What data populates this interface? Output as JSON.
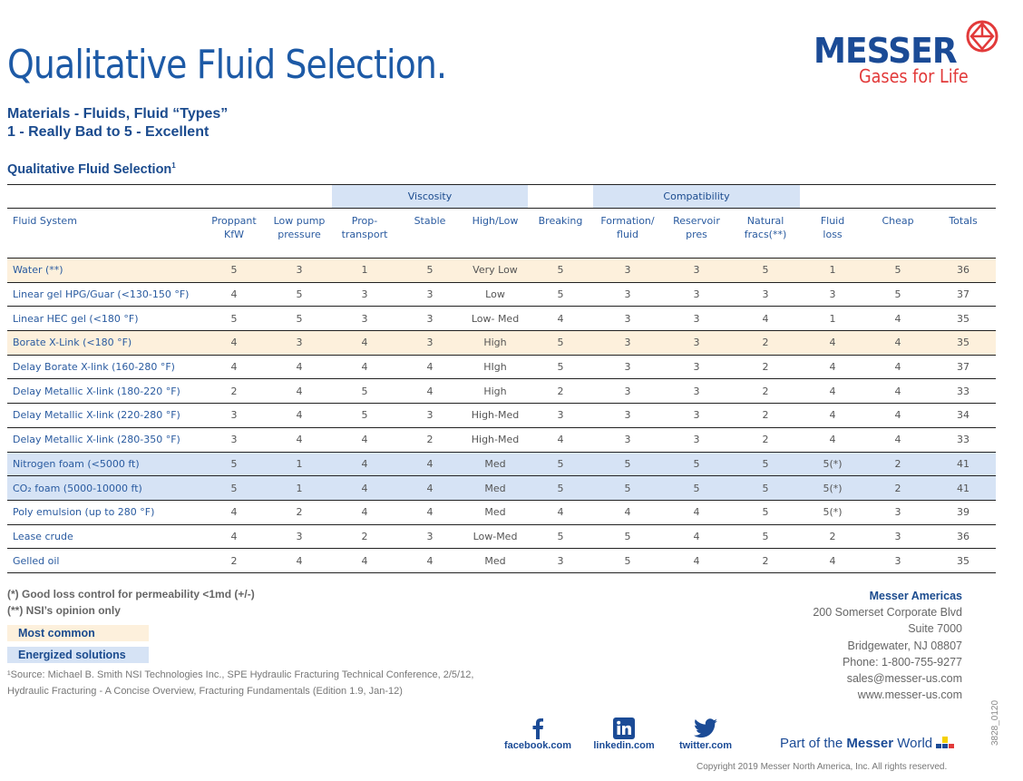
{
  "header": {
    "title": "Qualitative Fluid Selection.",
    "subtitle_line1": "Materials - Fluids, Fluid “Types”",
    "subtitle_line2": "1 - Really Bad to 5 - Excellent",
    "table_title": "Qualitative Fluid Selection",
    "table_title_sup": "1"
  },
  "logo": {
    "brand": "MESSER",
    "tagline": "Gases for Life",
    "brand_color": "#1b4b96",
    "tagline_color": "#e23a3a"
  },
  "colors": {
    "most_common": "#fdf0dc",
    "energized": "#d6e3f5",
    "accent": "#1d5aa6"
  },
  "table": {
    "groups": {
      "viscosity": "Viscosity",
      "compatibility": "Compatibility"
    },
    "columns": [
      "Fluid System",
      "Proppant KfW",
      "Low pump pressure",
      "Prop-transport",
      "Stable",
      "High/Low",
      "Breaking",
      "Formation/ fluid",
      "Reservoir pres",
      "Natural fracs(**)",
      "Fluid loss",
      "Cheap",
      "Totals"
    ],
    "rows": [
      {
        "type": "common",
        "cells": [
          "Water (**)",
          "5",
          "3",
          "1",
          "5",
          "Very Low",
          "5",
          "3",
          "3",
          "5",
          "1",
          "5",
          "36"
        ]
      },
      {
        "type": "",
        "cells": [
          "Linear gel HPG/Guar (<130-150 °F)",
          "4",
          "5",
          "3",
          "3",
          "Low",
          "5",
          "3",
          "3",
          "3",
          "3",
          "5",
          "37"
        ]
      },
      {
        "type": "",
        "cells": [
          "Linear HEC gel (<180 °F)",
          "5",
          "5",
          "3",
          "3",
          "Low- Med",
          "4",
          "3",
          "3",
          "4",
          "1",
          "4",
          "35"
        ]
      },
      {
        "type": "common",
        "cells": [
          "Borate X-Link (<180 °F)",
          "4",
          "3",
          "4",
          "3",
          "High",
          "5",
          "3",
          "3",
          "2",
          "4",
          "4",
          "35"
        ]
      },
      {
        "type": "",
        "cells": [
          "Delay Borate X-link (160-280 °F)",
          "4",
          "4",
          "4",
          "4",
          "HIgh",
          "5",
          "3",
          "3",
          "2",
          "4",
          "4",
          "37"
        ]
      },
      {
        "type": "",
        "cells": [
          "Delay Metallic X-link (180-220 °F)",
          "2",
          "4",
          "5",
          "4",
          "High",
          "2",
          "3",
          "3",
          "2",
          "4",
          "4",
          "33"
        ]
      },
      {
        "type": "",
        "cells": [
          "Delay Metallic X-link (220-280 °F)",
          "3",
          "4",
          "5",
          "3",
          "High-Med",
          "3",
          "3",
          "3",
          "2",
          "4",
          "4",
          "34"
        ]
      },
      {
        "type": "",
        "cells": [
          "Delay Metallic X-link (280-350 °F)",
          "3",
          "4",
          "4",
          "2",
          "High-Med",
          "4",
          "3",
          "3",
          "2",
          "4",
          "4",
          "33"
        ]
      },
      {
        "type": "energized",
        "cells": [
          "Nitrogen foam (<5000 ft)",
          "5",
          "1",
          "4",
          "4",
          "Med",
          "5",
          "5",
          "5",
          "5",
          "5(*)",
          "2",
          "41"
        ]
      },
      {
        "type": "energized",
        "cells": [
          "CO₂ foam (5000-10000 ft)",
          "5",
          "1",
          "4",
          "4",
          "Med",
          "5",
          "5",
          "5",
          "5",
          "5(*)",
          "2",
          "41"
        ]
      },
      {
        "type": "",
        "cells": [
          "Poly emulsion (up to 280 °F)",
          "4",
          "2",
          "4",
          "4",
          "Med",
          "4",
          "4",
          "4",
          "5",
          "5(*)",
          "3",
          "39"
        ]
      },
      {
        "type": "",
        "cells": [
          "Lease crude",
          "4",
          "3",
          "2",
          "3",
          "Low-Med",
          "5",
          "5",
          "4",
          "5",
          "2",
          "3",
          "36"
        ]
      },
      {
        "type": "",
        "cells": [
          "Gelled oil",
          "2",
          "4",
          "4",
          "4",
          "Med",
          "3",
          "5",
          "4",
          "2",
          "4",
          "3",
          "35"
        ]
      }
    ]
  },
  "notes": {
    "note1": "(*)   Good loss control for permeability <1md (+/-)",
    "note2": "(**)  NSI’s opinion only",
    "legend_common": "Most common",
    "legend_energized": "Energized solutions",
    "source1": "¹Source: Michael B. Smith NSI Technologies Inc., SPE Hydraulic Fracturing Technical Conference, 2/5/12,",
    "source2": "Hydraulic Fracturing - A Concise Overview, Fracturing Fundamentals (Edition 1.9, Jan-12)"
  },
  "contact": {
    "company": "Messer Americas",
    "lines": [
      "200 Somerset Corporate Blvd",
      "Suite 7000",
      "Bridgewater, NJ 08807",
      "Phone: 1-800-755-9277",
      "sales@messer-us.com",
      "www.messer-us.com"
    ]
  },
  "social": [
    {
      "icon": "facebook-icon",
      "label": "facebook.com"
    },
    {
      "icon": "linkedin-icon",
      "label": "linkedin.com"
    },
    {
      "icon": "twitter-icon",
      "label": "twitter.com"
    }
  ],
  "footer": {
    "part_of_prefix": "Part of the ",
    "part_of_brand": "Messer",
    "part_of_suffix": " World",
    "copyright": "Copyright 2019 Messer North America, Inc. All rights reserved.",
    "doc_code": "3828_0120"
  }
}
